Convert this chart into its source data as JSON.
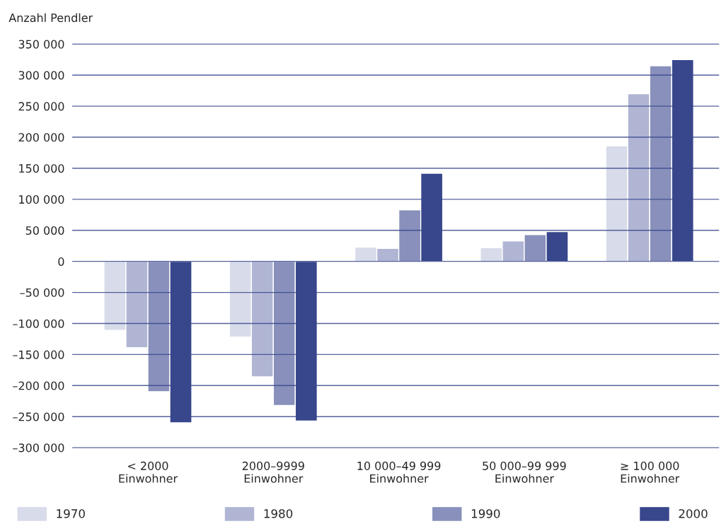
{
  "chart_data": {
    "type": "bar",
    "ylabel": "Anzahl Pendler",
    "categories": [
      "< 2000\nEinwohner",
      "2000–9999\nEinwohner",
      "10 000–49 999\nEinwohner",
      "50 000–99 999\nEinwohner",
      "≥ 100 000\nEinwohner"
    ],
    "series": [
      {
        "name": "1970",
        "color": "#d8dbe9",
        "values": [
          -111000,
          -122000,
          23000,
          22000,
          186000
        ]
      },
      {
        "name": "1980",
        "color": "#b0b5d4",
        "values": [
          -139000,
          -186000,
          21000,
          33000,
          270000
        ]
      },
      {
        "name": "1990",
        "color": "#8890bb",
        "values": [
          -210000,
          -232000,
          83000,
          43000,
          315000
        ]
      },
      {
        "name": "2000",
        "color": "#38468c",
        "values": [
          -260000,
          -257000,
          142000,
          48000,
          325000
        ]
      }
    ],
    "ylim": [
      -300000,
      350000
    ],
    "yticks": [
      {
        "value": -300000,
        "label": "–300 000"
      },
      {
        "value": -250000,
        "label": "–250 000"
      },
      {
        "value": -200000,
        "label": "–200 000"
      },
      {
        "value": -150000,
        "label": "–150 000"
      },
      {
        "value": -100000,
        "label": "–100 000"
      },
      {
        "value": -50000,
        "label": "–50 000"
      },
      0,
      {
        "value": 50000,
        "label": "50 000"
      },
      {
        "value": 100000,
        "label": "100 000"
      },
      {
        "value": 150000,
        "label": "150 000"
      },
      {
        "value": 200000,
        "label": "200 000"
      },
      {
        "value": 250000,
        "label": "250 000"
      },
      {
        "value": 300000,
        "label": "300 000"
      },
      {
        "value": 350000,
        "label": "350 000"
      }
    ],
    "grid": "y",
    "legend": "bottom"
  }
}
